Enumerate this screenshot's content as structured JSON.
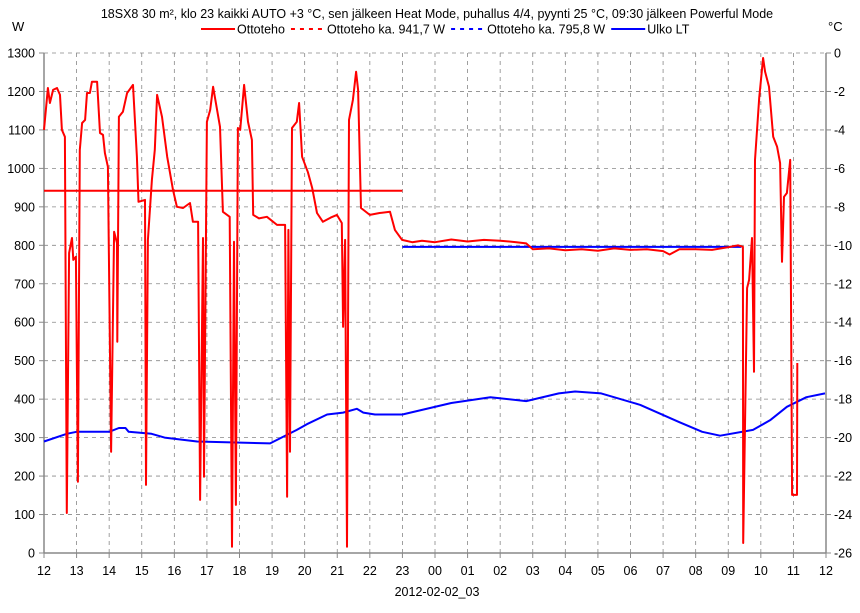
{
  "chart_data": {
    "type": "line",
    "title": "18SX8 30 m², klo 23 kaikki AUTO +3 °C, sen jälkeen Heat Mode, puhallus 4/4, pyynti 25 °C, 09:30 jälkeen Powerful Mode",
    "xlabel": "2012-02-02_03",
    "ylabel_left": "W",
    "ylabel_right": "°C",
    "x_unit": "hours since 12:00",
    "xlim": [
      0,
      24
    ],
    "ylim_left": [
      0,
      1300
    ],
    "ylim_right": [
      -26,
      0
    ],
    "grid": true,
    "legend_placement": "top-center",
    "x_tick_labels": [
      "12",
      "13",
      "14",
      "15",
      "16",
      "17",
      "18",
      "19",
      "20",
      "21",
      "22",
      "23",
      "00",
      "01",
      "02",
      "03",
      "04",
      "05",
      "06",
      "07",
      "08",
      "09",
      "10",
      "11",
      "12"
    ],
    "y_left_ticks": [
      0,
      100,
      200,
      300,
      400,
      500,
      600,
      700,
      800,
      900,
      1000,
      1100,
      1200,
      1300
    ],
    "y_right_ticks": [
      0,
      -2,
      -4,
      -6,
      -8,
      -10,
      -12,
      -14,
      -16,
      -18,
      -20,
      -22,
      -24,
      -26
    ],
    "series": [
      {
        "name": "Ottoteho",
        "axis": "left",
        "color": "#ff0000",
        "style": "solid",
        "points": [
          [
            0,
            1100
          ],
          [
            0.12,
            1209
          ],
          [
            0.18,
            1170
          ],
          [
            0.28,
            1204
          ],
          [
            0.4,
            1209
          ],
          [
            0.49,
            1191
          ],
          [
            0.55,
            1100
          ],
          [
            0.64,
            1082
          ],
          [
            0.7,
            104
          ],
          [
            0.77,
            780
          ],
          [
            0.86,
            819
          ],
          [
            0.9,
            762
          ],
          [
            0.98,
            770
          ],
          [
            1.04,
            185
          ],
          [
            1.1,
            1048
          ],
          [
            1.17,
            1118
          ],
          [
            1.26,
            1126
          ],
          [
            1.32,
            1196
          ],
          [
            1.41,
            1196
          ],
          [
            1.47,
            1225
          ],
          [
            1.63,
            1225
          ],
          [
            1.72,
            1092
          ],
          [
            1.81,
            1087
          ],
          [
            1.87,
            1040
          ],
          [
            1.96,
            1004
          ],
          [
            2.06,
            263
          ],
          [
            2.15,
            835
          ],
          [
            2.24,
            806
          ],
          [
            2.25,
            549
          ],
          [
            2.3,
            1134
          ],
          [
            2.42,
            1147
          ],
          [
            2.55,
            1196
          ],
          [
            2.73,
            1217
          ],
          [
            2.85,
            1030
          ],
          [
            2.9,
            913
          ],
          [
            3.1,
            918
          ],
          [
            3.13,
            177
          ],
          [
            3.19,
            814
          ],
          [
            3.31,
            970
          ],
          [
            3.4,
            1048
          ],
          [
            3.47,
            1191
          ],
          [
            3.62,
            1134
          ],
          [
            3.78,
            1030
          ],
          [
            3.96,
            944
          ],
          [
            4.08,
            900
          ],
          [
            4.27,
            897
          ],
          [
            4.48,
            910
          ],
          [
            4.57,
            861
          ],
          [
            4.73,
            861
          ],
          [
            4.79,
            138
          ],
          [
            4.88,
            819
          ],
          [
            4.91,
            198
          ],
          [
            5.0,
            1121
          ],
          [
            5.1,
            1152
          ],
          [
            5.19,
            1212
          ],
          [
            5.4,
            1108
          ],
          [
            5.49,
            887
          ],
          [
            5.7,
            874
          ],
          [
            5.77,
            16
          ],
          [
            5.83,
            809
          ],
          [
            5.89,
            125
          ],
          [
            5.95,
            1105
          ],
          [
            6.02,
            1100
          ],
          [
            6.14,
            1217
          ],
          [
            6.26,
            1121
          ],
          [
            6.38,
            1074
          ],
          [
            6.42,
            879
          ],
          [
            6.6,
            870
          ],
          [
            6.84,
            874
          ],
          [
            7.15,
            853
          ],
          [
            7.4,
            853
          ],
          [
            7.46,
            146
          ],
          [
            7.5,
            840
          ],
          [
            7.55,
            263
          ],
          [
            7.61,
            1105
          ],
          [
            7.76,
            1121
          ],
          [
            7.83,
            1170
          ],
          [
            7.92,
            1030
          ],
          [
            8.1,
            990
          ],
          [
            8.23,
            949
          ],
          [
            8.38,
            884
          ],
          [
            8.56,
            861
          ],
          [
            8.8,
            872
          ],
          [
            8.99,
            879
          ],
          [
            9.14,
            858
          ],
          [
            9.18,
            588
          ],
          [
            9.24,
            814
          ],
          [
            9.3,
            16
          ],
          [
            9.36,
            1126
          ],
          [
            9.48,
            1178
          ],
          [
            9.58,
            1251
          ],
          [
            9.64,
            1204
          ],
          [
            9.73,
            897
          ],
          [
            10.0,
            879
          ],
          [
            10.3,
            884
          ],
          [
            10.62,
            887
          ],
          [
            10.77,
            840
          ],
          [
            10.99,
            814
          ],
          [
            11.3,
            808
          ],
          [
            11.6,
            812
          ],
          [
            12.0,
            808
          ],
          [
            12.5,
            815
          ],
          [
            13.0,
            810
          ],
          [
            13.5,
            814
          ],
          [
            14.0,
            812
          ],
          [
            14.5,
            808
          ],
          [
            14.8,
            805
          ],
          [
            15.0,
            790
          ],
          [
            15.5,
            792
          ],
          [
            16.0,
            787
          ],
          [
            16.5,
            790
          ],
          [
            17.0,
            786
          ],
          [
            17.5,
            792
          ],
          [
            18.0,
            788
          ],
          [
            18.5,
            790
          ],
          [
            19.0,
            785
          ],
          [
            19.2,
            776
          ],
          [
            19.5,
            790
          ],
          [
            20.0,
            790
          ],
          [
            20.5,
            788
          ],
          [
            21.0,
            795
          ],
          [
            21.3,
            800
          ],
          [
            21.45,
            796
          ],
          [
            21.46,
            26
          ],
          [
            21.58,
            689
          ],
          [
            21.64,
            710
          ],
          [
            21.73,
            819
          ],
          [
            21.79,
            471
          ],
          [
            21.82,
            1022
          ],
          [
            21.95,
            1183
          ],
          [
            22.07,
            1287
          ],
          [
            22.13,
            1251
          ],
          [
            22.25,
            1212
          ],
          [
            22.38,
            1082
          ],
          [
            22.5,
            1056
          ],
          [
            22.59,
            1014
          ],
          [
            22.65,
            757
          ],
          [
            22.71,
            926
          ],
          [
            22.8,
            936
          ],
          [
            22.9,
            1022
          ],
          [
            22.96,
            151
          ],
          [
            23.11,
            151
          ],
          [
            23.12,
            494
          ]
        ]
      },
      {
        "name": "Ottoteho ka. 941,7 W",
        "axis": "left",
        "color": "#ff0000",
        "style": "dashed",
        "points": [
          [
            0,
            941.7
          ],
          [
            11,
            941.7
          ]
        ]
      },
      {
        "name": "Ottoteho ka. 795,8 W",
        "axis": "left",
        "color": "#0000ff",
        "style": "dashed",
        "points": [
          [
            11,
            795.8
          ],
          [
            21.4,
            795.8
          ]
        ]
      },
      {
        "name": "Ulko LT",
        "axis": "right",
        "color": "#0000ff",
        "style": "solid",
        "points": [
          [
            0,
            -20.2
          ],
          [
            0.7,
            -19.8
          ],
          [
            1.0,
            -19.7
          ],
          [
            2.0,
            -19.7
          ],
          [
            2.3,
            -19.5
          ],
          [
            2.5,
            -19.5
          ],
          [
            2.6,
            -19.7
          ],
          [
            3.3,
            -19.8
          ],
          [
            3.7,
            -20.0
          ],
          [
            4.7,
            -20.2
          ],
          [
            6.94,
            -20.3
          ],
          [
            7.76,
            -19.6
          ],
          [
            8.07,
            -19.3
          ],
          [
            8.69,
            -18.8
          ],
          [
            9.18,
            -18.7
          ],
          [
            9.6,
            -18.5
          ],
          [
            9.8,
            -18.7
          ],
          [
            10.16,
            -18.8
          ],
          [
            11.0,
            -18.8
          ],
          [
            12.5,
            -18.2
          ],
          [
            13.7,
            -17.9
          ],
          [
            14.8,
            -18.1
          ],
          [
            15.8,
            -17.7
          ],
          [
            16.3,
            -17.6
          ],
          [
            17.1,
            -17.7
          ],
          [
            18.3,
            -18.3
          ],
          [
            19.5,
            -19.2
          ],
          [
            20.2,
            -19.7
          ],
          [
            20.75,
            -19.9
          ],
          [
            21.76,
            -19.6
          ],
          [
            22.28,
            -19.1
          ],
          [
            22.8,
            -18.4
          ],
          [
            23.4,
            -17.9
          ],
          [
            23.97,
            -17.7
          ]
        ]
      }
    ]
  }
}
